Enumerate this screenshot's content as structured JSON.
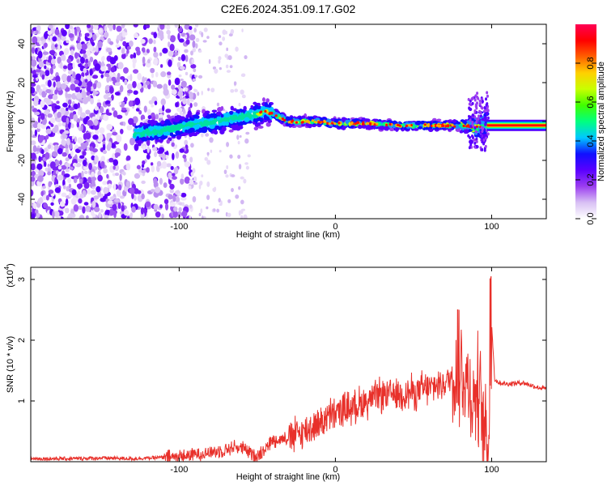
{
  "title": "C2E6.2024.351.09.17.G02",
  "chart_data": [
    {
      "type": "heatmap",
      "xlabel": "Height of straight line (km)",
      "ylabel": "Frequency (Hz)",
      "xlim": [
        -195,
        135
      ],
      "ylim": [
        -50,
        50
      ],
      "xticks": [
        -100,
        0,
        100
      ],
      "yticks": [
        -40,
        -20,
        0,
        20,
        40
      ],
      "grid": false,
      "colorbar": {
        "label": "Normalized spectral amplitude",
        "range": [
          0,
          1
        ],
        "ticks": [
          "0.0",
          "0.2",
          "0.4",
          "0.6",
          "0.8"
        ],
        "colors": [
          "#ffffff",
          "#d8c0f4",
          "#9b3df0",
          "#5a00ff",
          "#1010ff",
          "#00c8ff",
          "#00ff80",
          "#40ff00",
          "#c8ff00",
          "#ffd000",
          "#ff6000",
          "#ff0000",
          "#ff0055"
        ]
      },
      "ridge": {
        "x": [
          -125,
          -115,
          -105,
          -95,
          -85,
          -75,
          -65,
          -55,
          -45,
          -40,
          -35,
          -30,
          -20,
          -10,
          0,
          20,
          40,
          60,
          80,
          90,
          95,
          100,
          135
        ],
        "y": [
          -6,
          -5,
          -4,
          -2,
          -1,
          0,
          2,
          3,
          5,
          4,
          2,
          0,
          0,
          0,
          -1,
          -1,
          -2,
          -2,
          -2,
          -3,
          -2,
          -2,
          -2
        ]
      },
      "noise_region_x": [
        -195,
        -100
      ]
    },
    {
      "type": "line",
      "xlabel": "Height of straight line (km)",
      "ylabel": "SNR (10 * v/v)",
      "y_multiplier": "(x10",
      "y_multiplier_exp": "4",
      "y_multiplier_close": ")",
      "xlim": [
        -195,
        135
      ],
      "ylim": [
        0,
        3.2
      ],
      "xticks": [
        -100,
        0,
        100
      ],
      "yticks": [
        1,
        2,
        3
      ],
      "grid": false,
      "series": [
        {
          "color": "#e8302a",
          "x": [
            -195,
            -170,
            -150,
            -130,
            -110,
            -100,
            -90,
            -80,
            -70,
            -65,
            -60,
            -55,
            -50,
            -40,
            -30,
            -20,
            -10,
            0,
            10,
            20,
            30,
            40,
            50,
            60,
            65,
            70,
            75,
            80,
            85,
            88,
            92,
            95,
            98,
            100,
            102,
            105,
            110,
            120,
            130,
            135
          ],
          "y": [
            0.05,
            0.05,
            0.06,
            0.05,
            0.07,
            0.08,
            0.12,
            0.15,
            0.2,
            0.25,
            0.22,
            0.15,
            0.1,
            0.35,
            0.4,
            0.5,
            0.65,
            0.8,
            0.9,
            1.0,
            1.1,
            1.12,
            1.15,
            1.2,
            1.25,
            1.3,
            1.4,
            1.5,
            1.25,
            1.0,
            1.2,
            0.6,
            0.2,
            2.3,
            1.35,
            1.3,
            1.28,
            1.3,
            1.22,
            1.2
          ]
        }
      ]
    }
  ]
}
